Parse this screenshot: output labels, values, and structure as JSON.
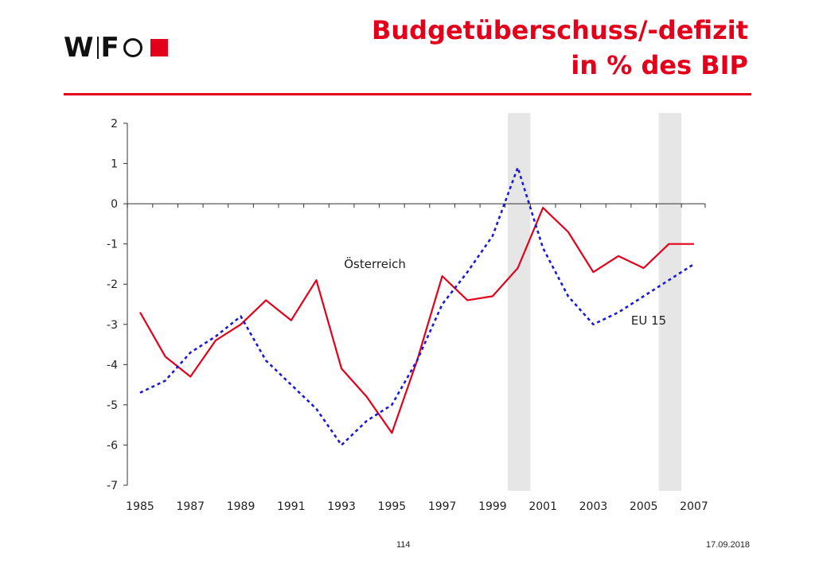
{
  "logo": {
    "text_w": "W",
    "text_f": "F"
  },
  "title": {
    "line1": "Budgetüberschuss/-defizit",
    "line2": "in % des BIP"
  },
  "footer": {
    "page": "114",
    "date": "17.09.2018"
  },
  "colors": {
    "accent": "#e3001b",
    "eu15": "#1a1ad6",
    "band": "#e6e6e6",
    "axis": "#333333"
  },
  "chart_data": {
    "type": "line",
    "x": [
      1985,
      1986,
      1987,
      1988,
      1989,
      1990,
      1991,
      1992,
      1993,
      1994,
      1995,
      1996,
      1997,
      1998,
      1999,
      2000,
      2001,
      2002,
      2003,
      2004,
      2005,
      2006,
      2007
    ],
    "xticks": [
      "1985",
      "1987",
      "1989",
      "1991",
      "1993",
      "1995",
      "1997",
      "1999",
      "2001",
      "2003",
      "2005",
      "2007"
    ],
    "yticks": [
      "2",
      "1",
      "0",
      "-1",
      "-2",
      "-3",
      "-4",
      "-5",
      "-6",
      "-7"
    ],
    "ylim": [
      -7,
      2
    ],
    "xlim": [
      1985,
      2007
    ],
    "series": [
      {
        "name": "Österreich",
        "style": "solid",
        "color": "#e3001b",
        "values": [
          -2.7,
          -3.8,
          -4.3,
          -3.4,
          -3.0,
          -2.4,
          -2.9,
          -1.9,
          -4.1,
          -4.8,
          -5.7,
          -3.9,
          -1.8,
          -2.4,
          -2.3,
          -1.6,
          -0.1,
          -0.7,
          -1.7,
          -1.3,
          -1.6,
          -1.0,
          -1.0
        ]
      },
      {
        "name": "EU 15",
        "style": "dotted",
        "color": "#1a1ad6",
        "values": [
          -4.7,
          -4.4,
          -3.7,
          -3.3,
          -2.8,
          -3.9,
          -4.5,
          -5.1,
          -6.0,
          -5.4,
          -5.0,
          -3.9,
          -2.5,
          -1.7,
          -0.8,
          0.9,
          -1.1,
          -2.3,
          -3.0,
          -2.7,
          -2.3,
          -1.9,
          -1.5
        ]
      }
    ],
    "shaded_periods": [
      [
        1999.6,
        2000.5
      ],
      [
        2005.6,
        2006.5
      ]
    ],
    "annotations": [
      {
        "text": "Österreich",
        "x": 1993.1,
        "y": -1.6
      },
      {
        "text": "EU 15",
        "x": 2004.5,
        "y": -3.0
      }
    ]
  }
}
